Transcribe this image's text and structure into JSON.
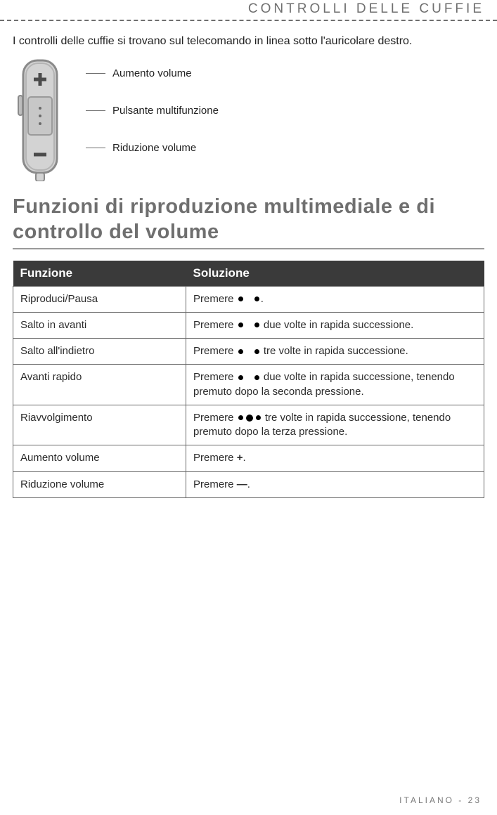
{
  "header": {
    "title": "CONTROLLI DELLE CUFFIE"
  },
  "intro": "I controlli delle cuffie si trovano sul telecomando in linea sotto l'auricolare destro.",
  "diagram": {
    "label_volume_up": "Aumento volume",
    "label_multi": "Pulsante multifunzione",
    "label_volume_down": "Riduzione volume",
    "remote_fill": "#d3d3d3",
    "remote_stroke": "#8a8a8a"
  },
  "section_title": "Funzioni  di riproduzione multimediale e di controllo  del volume",
  "table": {
    "header_bg": "#3a3a3a",
    "header_fg": "#ffffff",
    "border_color": "#676767",
    "columns": [
      "Funzione",
      "Soluzione"
    ],
    "rows": [
      {
        "f": "Riproduci/Pausa",
        "s": {
          "prefix": "Premere ",
          "icons": [
            "dot",
            "gap",
            "dot"
          ],
          "suffix": "."
        }
      },
      {
        "f": "Salto in avanti",
        "s": {
          "prefix": "Premere ",
          "icons": [
            "dot",
            "gap",
            "dot"
          ],
          "suffix": " due volte in rapida successione."
        }
      },
      {
        "f": "Salto all'indietro",
        "s": {
          "prefix": "Premere ",
          "icons": [
            "dot",
            "gap",
            "dot"
          ],
          "suffix": " tre volte in rapida successione."
        }
      },
      {
        "f": "Avanti rapido",
        "s": {
          "prefix": "Premere ",
          "icons": [
            "dot",
            "gap",
            "dot"
          ],
          "suffix": " due volte in rapida successione, tenendo premuto dopo la seconda pressione."
        }
      },
      {
        "f": "Riavvolgimento",
        "s": {
          "prefix": "Premere ",
          "icons": [
            "dot",
            "bigdot",
            "dot"
          ],
          "suffix": " tre volte in rapida successione, tenendo premuto dopo la terza pressione."
        }
      },
      {
        "f": "Aumento volume",
        "s": {
          "prefix": "Premere ",
          "icons": [
            "plus"
          ],
          "suffix": "."
        }
      },
      {
        "f": "Riduzione volume",
        "s": {
          "prefix": "Premere ",
          "icons": [
            "minus"
          ],
          "suffix": "."
        }
      }
    ]
  },
  "footer": {
    "lang": "ITALIANO",
    "sep": " - ",
    "page": "23"
  }
}
